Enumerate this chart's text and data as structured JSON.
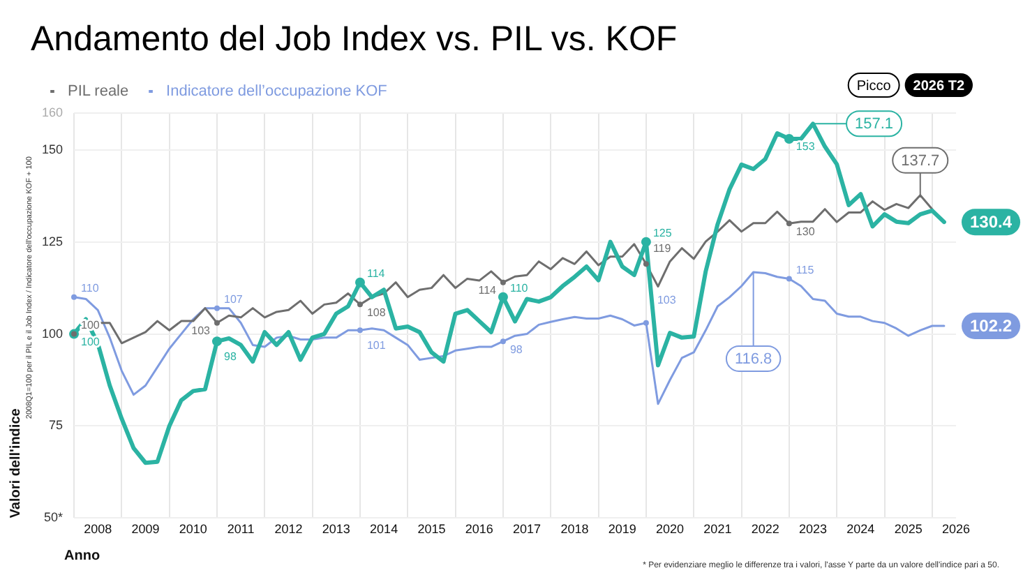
{
  "chart_data": {
    "type": "line",
    "title": "Andamento del Job Index vs. PIL vs. KOF",
    "xlabel": "Anno",
    "ylabel": "Valori dell'indice",
    "x": [
      2008,
      2008.25,
      2008.5,
      2008.75,
      2009,
      2009.25,
      2009.5,
      2009.75,
      2010,
      2010.25,
      2010.5,
      2010.75,
      2011,
      2011.25,
      2011.5,
      2011.75,
      2012,
      2012.25,
      2012.5,
      2012.75,
      2013,
      2013.25,
      2013.5,
      2013.75,
      2014,
      2014.25,
      2014.5,
      2014.75,
      2015,
      2015.25,
      2015.5,
      2015.75,
      2016,
      2016.25,
      2016.5,
      2016.75,
      2017,
      2017.25,
      2017.5,
      2017.75,
      2018,
      2018.25,
      2018.5,
      2018.75,
      2019,
      2019.25,
      2019.5,
      2019.75,
      2020,
      2020.25,
      2020.5,
      2020.75,
      2021,
      2021.25,
      2021.5,
      2021.75,
      2022,
      2022.25,
      2022.5,
      2022.75,
      2023,
      2023.25,
      2023.5,
      2023.75,
      2024,
      2024.25,
      2024.5,
      2024.75,
      2025,
      2025.25,
      2025.5,
      2025.75,
      2026,
      2026.25
    ],
    "series": [
      {
        "color": "#2bb3a3",
        "values": [
          100,
          104,
          97.4,
          86,
          77,
          69,
          65,
          65.3,
          75,
          82,
          84.5,
          85,
          98,
          98.8,
          97,
          92.5,
          100.5,
          97,
          100.5,
          93,
          99,
          100,
          105.5,
          107.5,
          114,
          110,
          112,
          101.5,
          102,
          100.5,
          95,
          92.5,
          105.5,
          106.5,
          103.5,
          100.5,
          110,
          103.4,
          109.5,
          108.8,
          110,
          113,
          115.5,
          118.3,
          114.6,
          125,
          118.3,
          116,
          125,
          91.5,
          100.3,
          99,
          99.3,
          117,
          129.8,
          139.3,
          146,
          144.8,
          147.5,
          154.5,
          153,
          153,
          157.1,
          150.9,
          146.1,
          135,
          138,
          129.2,
          132.5,
          130.5,
          130.1,
          132.5,
          133.5,
          130.4
        ],
        "value_labels": [
          "100",
          null,
          null,
          null,
          null,
          null,
          null,
          null,
          null,
          null,
          null,
          null,
          "98",
          null,
          null,
          null,
          null,
          null,
          null,
          null,
          null,
          null,
          null,
          null,
          "114",
          null,
          null,
          null,
          null,
          null,
          null,
          null,
          null,
          null,
          null,
          null,
          "110",
          null,
          null,
          null,
          null,
          null,
          null,
          null,
          null,
          null,
          null,
          null,
          "125",
          null,
          null,
          null,
          null,
          null,
          null,
          null,
          null,
          null,
          null,
          null,
          "153",
          null,
          null,
          null,
          null,
          null,
          null,
          null,
          null,
          null,
          null,
          null,
          null,
          "130.4"
        ]
      },
      {
        "name": "PIL reale",
        "color": "#6e6e6e",
        "values": [
          100,
          103,
          103,
          103,
          97.5,
          99,
          100.5,
          103.5,
          101,
          103.5,
          103.5,
          107,
          103,
          105,
          104.5,
          107,
          104.5,
          106,
          106.5,
          109,
          105.5,
          108,
          108.5,
          111,
          108,
          110,
          111,
          114,
          110,
          112,
          112.5,
          116,
          112.5,
          115,
          114.5,
          117,
          114,
          115.6,
          116,
          119.7,
          117.6,
          120.6,
          119,
          122.4,
          118.7,
          121,
          121,
          124.4,
          119,
          112.9,
          119.7,
          123.3,
          120.4,
          125.1,
          127.8,
          130.9,
          127.8,
          130.1,
          130.1,
          133.2,
          130,
          130.5,
          130.5,
          133.9,
          130.4,
          133,
          133,
          136,
          133.7,
          135.3,
          134.2,
          137.7,
          133.9,
          null
        ],
        "value_labels": [
          "100",
          null,
          null,
          null,
          null,
          null,
          null,
          null,
          null,
          null,
          null,
          null,
          "103",
          null,
          null,
          null,
          null,
          null,
          null,
          null,
          null,
          null,
          null,
          null,
          "108",
          null,
          null,
          null,
          null,
          null,
          null,
          null,
          null,
          null,
          null,
          null,
          "114",
          null,
          null,
          null,
          null,
          null,
          null,
          null,
          null,
          null,
          null,
          null,
          "119",
          null,
          null,
          null,
          null,
          null,
          null,
          null,
          null,
          null,
          null,
          null,
          "130",
          null,
          null,
          null,
          null,
          null,
          null,
          null,
          null,
          null,
          null,
          null,
          null,
          null
        ]
      },
      {
        "name": "Indicatore dell’occupazione KOF",
        "color": "#7f9be0",
        "values": [
          110,
          109.5,
          106.5,
          99,
          90,
          83.5,
          86,
          91,
          96,
          100,
          104,
          107,
          107,
          107,
          103,
          97,
          96.5,
          99,
          99.5,
          98.5,
          98.5,
          99,
          99,
          101,
          101,
          101.5,
          101,
          99,
          97,
          93,
          93.5,
          94,
          95.5,
          96,
          96.5,
          96.5,
          98,
          99.5,
          100,
          102.5,
          103.3,
          104,
          104.6,
          104.2,
          104.2,
          105,
          104,
          102.3,
          103,
          81,
          87.5,
          93.5,
          95,
          101,
          107.5,
          110,
          113,
          116.8,
          116.5,
          115.5,
          115,
          113,
          109.5,
          109,
          105.5,
          104.7,
          104.7,
          103.5,
          103,
          101.5,
          99.5,
          101,
          102.2,
          102.2
        ],
        "value_labels": [
          "110",
          null,
          null,
          null,
          null,
          null,
          null,
          null,
          null,
          null,
          null,
          null,
          "107",
          null,
          null,
          null,
          null,
          null,
          null,
          null,
          null,
          null,
          null,
          null,
          "101",
          null,
          null,
          null,
          null,
          null,
          null,
          null,
          null,
          null,
          null,
          null,
          "98",
          null,
          null,
          null,
          null,
          null,
          null,
          null,
          null,
          null,
          null,
          null,
          "103",
          null,
          null,
          null,
          null,
          null,
          null,
          null,
          null,
          null,
          null,
          null,
          "115",
          null,
          null,
          null,
          null,
          null,
          null,
          null,
          null,
          null,
          null,
          null,
          null,
          "102.2"
        ]
      }
    ],
    "xlim": [
      2008,
      2026.5
    ],
    "xticks": [
      {
        "value": 2008,
        "label": null
      },
      {
        "value": 2008.5,
        "label": "2008"
      },
      {
        "value": 2009,
        "label": null
      },
      {
        "value": 2009.5,
        "label": "2009"
      },
      {
        "value": 2010,
        "label": null
      },
      {
        "value": 2010.5,
        "label": "2010"
      },
      {
        "value": 2011,
        "label": null
      },
      {
        "value": 2011.5,
        "label": "2011"
      },
      {
        "value": 2012,
        "label": null
      },
      {
        "value": 2012.5,
        "label": "2012"
      },
      {
        "value": 2013,
        "label": null
      },
      {
        "value": 2013.5,
        "label": "2013"
      },
      {
        "value": 2014,
        "label": null
      },
      {
        "value": 2014.5,
        "label": "2014"
      },
      {
        "value": 2015,
        "label": null
      },
      {
        "value": 2015.5,
        "label": "2015"
      },
      {
        "value": 2016,
        "label": null
      },
      {
        "value": 2016.5,
        "label": "2016"
      },
      {
        "value": 2017,
        "label": null
      },
      {
        "value": 2017.5,
        "label": "2017"
      },
      {
        "value": 2018,
        "label": null
      },
      {
        "value": 2018.5,
        "label": "2018"
      },
      {
        "value": 2019,
        "label": null
      },
      {
        "value": 2019.5,
        "label": "2019"
      },
      {
        "value": 2020,
        "label": null
      },
      {
        "value": 2020.5,
        "label": "2020"
      },
      {
        "value": 2021,
        "label": null
      },
      {
        "value": 2021.5,
        "label": "2021"
      },
      {
        "value": 2022,
        "label": null
      },
      {
        "value": 2022.5,
        "label": "2022"
      },
      {
        "value": 2023,
        "label": null
      },
      {
        "value": 2023.5,
        "label": "2023"
      },
      {
        "value": 2024,
        "label": null
      },
      {
        "value": 2024.5,
        "label": "2024"
      },
      {
        "value": 2025,
        "label": null
      },
      {
        "value": 2025.5,
        "label": "2025"
      },
      {
        "value": 2026,
        "label": null
      },
      {
        "value": 2026.5,
        "label": "2026"
      }
    ],
    "ylim": [
      50,
      160
    ],
    "yticks": [
      {
        "value": 50,
        "label": "50*"
      },
      75,
      100,
      125,
      150,
      160
    ],
    "grid": true,
    "legend": "top left",
    "marker": "none",
    "line_style": "solid",
    "annotations": [
      "Picco",
      "2026 T2",
      "2008Q1=100 per il PIL e il Job Index / Indicatore dell'occupazione KOF + 100",
      "* Per evidenziare meglio le differenze tra i valori, l'asse Y parte da un valore dell'indice pari a 50.",
      {
        "text": "157.1",
        "x": 2023.5,
        "y": 157.1
      },
      {
        "text": "137.7",
        "x": 2025.75,
        "y": 137.7
      },
      {
        "text": "116.8",
        "x": 2022.25,
        "y": 116.8
      }
    ]
  }
}
